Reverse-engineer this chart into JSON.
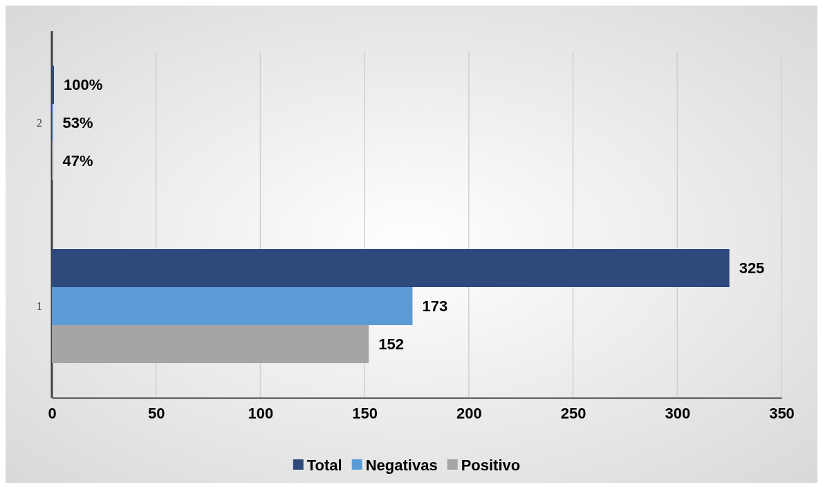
{
  "chart_data": {
    "type": "bar",
    "orientation": "horizontal",
    "categories": [
      "2",
      "1"
    ],
    "series": [
      {
        "name": "Total",
        "color": "#2e4a7d",
        "values": [
          1,
          325
        ],
        "value_labels": [
          "100%",
          "325"
        ]
      },
      {
        "name": "Negativas",
        "color": "#5b9bd5",
        "values": [
          0.53,
          173
        ],
        "value_labels": [
          "53%",
          "173"
        ]
      },
      {
        "name": "Positivo",
        "color": "#a5a5a5",
        "values": [
          0.47,
          152
        ],
        "value_labels": [
          "47%",
          "152"
        ]
      }
    ],
    "xlim": [
      0,
      350
    ],
    "xticks": [
      0,
      50,
      100,
      150,
      200,
      250,
      300,
      350
    ],
    "grid": "x",
    "legend": "bottom"
  }
}
